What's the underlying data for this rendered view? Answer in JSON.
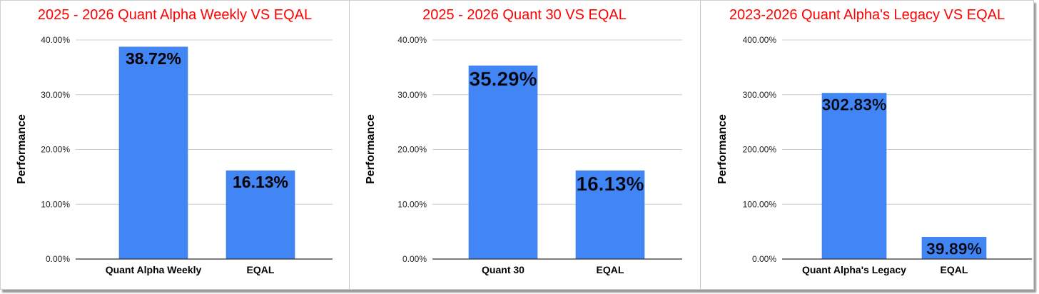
{
  "colors": {
    "bar": "#4285f4",
    "title": "#ff0000",
    "grid": "#cccccc",
    "axis": "#333333"
  },
  "chart_data": [
    {
      "type": "bar",
      "title": "2025 - 2026 Quant Alpha Weekly VS EQAL",
      "ylabel": "Performance",
      "xlabel": "",
      "categories": [
        "Quant Alpha Weekly",
        "EQAL"
      ],
      "values": [
        38.72,
        16.13
      ],
      "data_labels": [
        "38.72%",
        "16.13%"
      ],
      "yticks": [
        "0.00%",
        "10.00%",
        "20.00%",
        "30.00%",
        "40.00%"
      ],
      "ylim": [
        0,
        40
      ],
      "grid": true,
      "legend": "none"
    },
    {
      "type": "bar",
      "title": "2025 - 2026 Quant 30 VS EQAL",
      "ylabel": "Performance",
      "xlabel": "",
      "categories": [
        "Quant 30",
        "EQAL"
      ],
      "values": [
        35.29,
        16.13
      ],
      "data_labels": [
        "35.29%",
        "16.13%"
      ],
      "yticks": [
        "0.00%",
        "10.00%",
        "20.00%",
        "30.00%",
        "40.00%"
      ],
      "ylim": [
        0,
        40
      ],
      "grid": true,
      "legend": "none"
    },
    {
      "type": "bar",
      "title": "2023-2026 Quant Alpha's Legacy VS EQAL",
      "ylabel": "Performance",
      "xlabel": "",
      "categories": [
        "Quant Alpha's Legacy",
        "EQAL"
      ],
      "values": [
        302.83,
        39.89
      ],
      "data_labels": [
        "302.83%",
        "39.89%"
      ],
      "yticks": [
        "0.00%",
        "100.00%",
        "200.00%",
        "300.00%",
        "400.00%"
      ],
      "ylim": [
        0,
        400
      ],
      "grid": true,
      "legend": "none"
    }
  ]
}
